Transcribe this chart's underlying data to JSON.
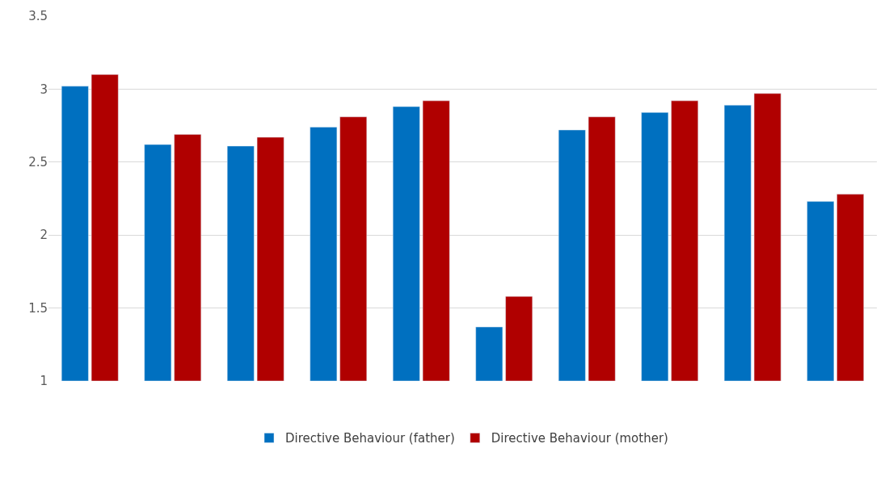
{
  "chart_data": {
    "type": "bar",
    "categories": [
      null,
      null,
      null,
      null,
      null,
      null,
      null,
      null,
      null,
      null
    ],
    "series": [
      {
        "name": "Directive Behaviour (father)",
        "color": "#0070c0",
        "values": [
          3.02,
          2.62,
          2.61,
          2.74,
          2.88,
          1.37,
          2.72,
          2.84,
          2.89,
          2.23
        ]
      },
      {
        "name": "Directive Behaviour (mother)",
        "color": "#b00000",
        "values": [
          3.1,
          2.69,
          2.67,
          2.81,
          2.92,
          1.58,
          2.81,
          2.92,
          2.97,
          2.28
        ]
      }
    ],
    "ylim": [
      1,
      3.5
    ],
    "yticks": [
      1,
      1.5,
      2,
      2.5,
      3,
      3.5
    ],
    "grid": "y",
    "legend": "bottom"
  }
}
